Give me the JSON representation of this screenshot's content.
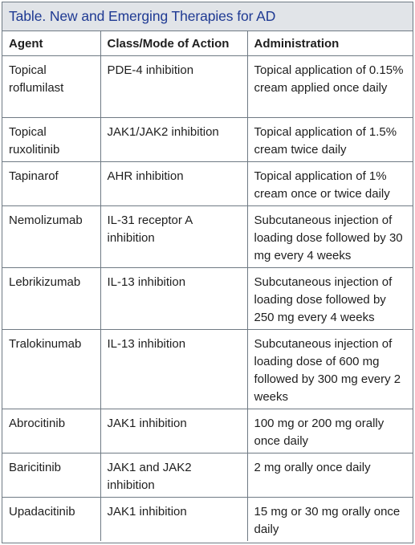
{
  "title": "Table. New and Emerging Therapies for AD",
  "colors": {
    "title_text": "#1f3a93",
    "title_bg": "#e1e4e8",
    "border": "#6f7a84"
  },
  "columns": [
    "Agent",
    "Class/Mode of Action",
    "Administration"
  ],
  "rows": [
    {
      "agent": "Topical roflumilast",
      "class": "PDE-4 inhibition",
      "administration": "Topical application of 0.15% cream applied once daily"
    },
    {
      "agent": "Topical ruxolitinib",
      "class": "JAK1/JAK2 inhibition",
      "administration": "Topical application of 1.5% cream twice daily"
    },
    {
      "agent": "Tapinarof",
      "class": "AHR inhibition",
      "administration": "Topical application of 1% cream once or twice daily"
    },
    {
      "agent": "Nemolizumab",
      "class": "IL-31 receptor A inhibition",
      "administration": "Subcutaneous injection of loading dose followed by 30 mg every 4 weeks"
    },
    {
      "agent": "Lebrikizumab",
      "class": "IL-13 inhibition",
      "administration": "Subcutaneous injection of loading dose followed by 250 mg every 4 weeks"
    },
    {
      "agent": "Tralokinumab",
      "class": "IL-13 inhibition",
      "administration": "Subcutaneous injection of loading dose of 600 mg followed by 300 mg every 2 weeks"
    },
    {
      "agent": "Abrocitinib",
      "class": "JAK1 inhibition",
      "administration": "100 mg or 200 mg orally once daily"
    },
    {
      "agent": "Baricitinib",
      "class": "JAK1 and JAK2 inhibition",
      "administration": "2 mg orally once daily"
    },
    {
      "agent": "Upadacitinib",
      "class": "JAK1 inhibition",
      "administration": "15 mg or 30 mg orally once daily"
    }
  ]
}
